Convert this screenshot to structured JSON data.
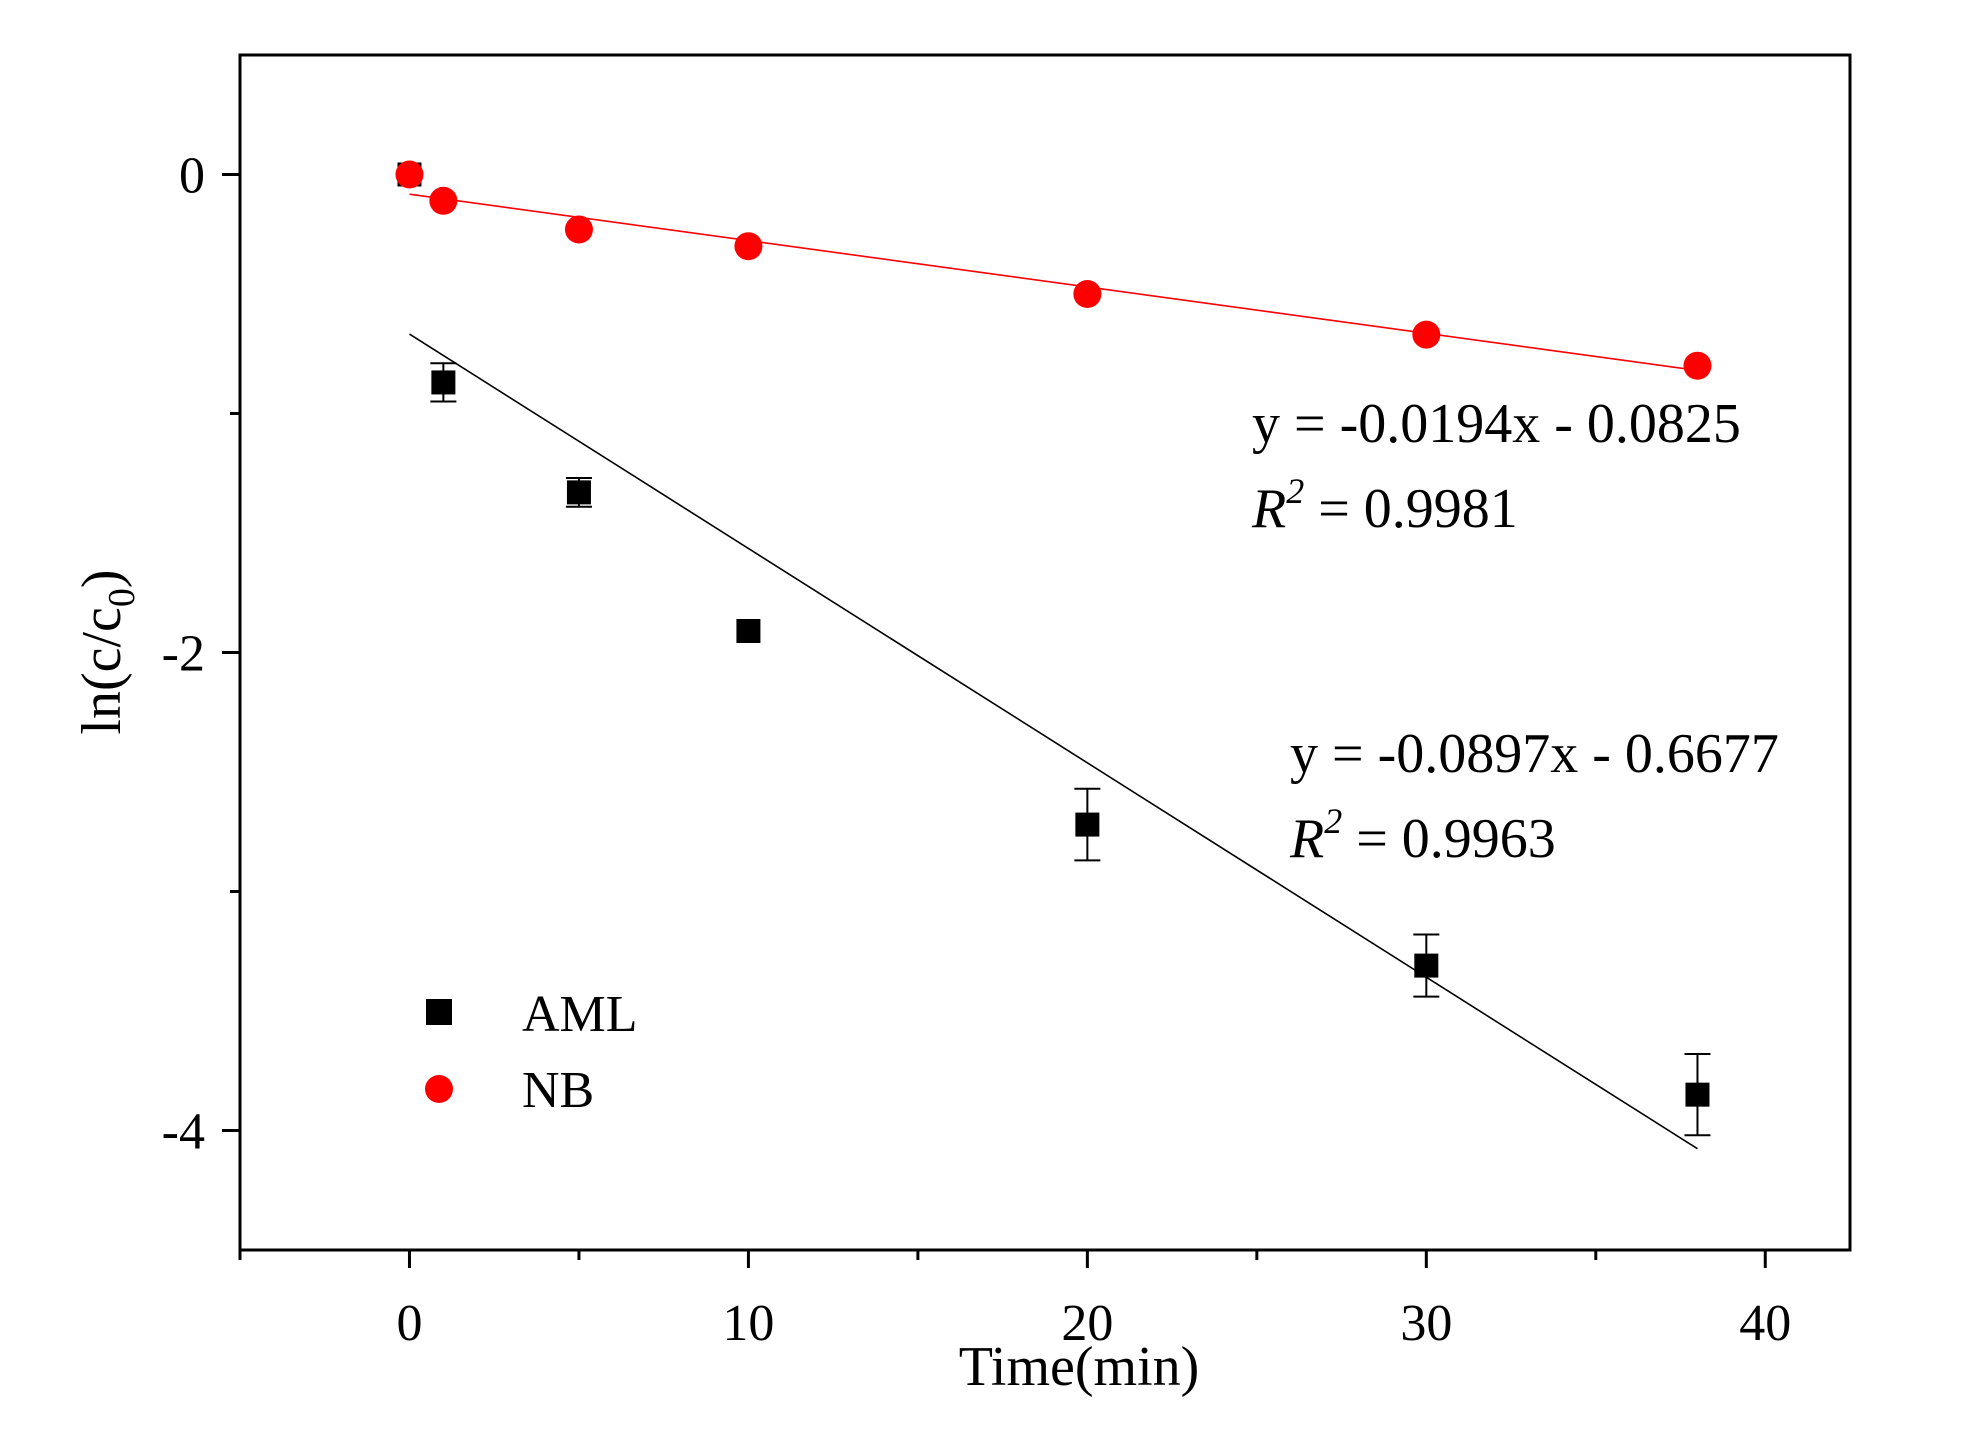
{
  "chart_data": {
    "type": "scatter",
    "xlabel": "Time(min)",
    "ylabel": {
      "main": "ln(c/c",
      "sub": "0",
      "close": ")"
    },
    "xlim": [
      -5,
      42.5
    ],
    "ylim": [
      -4.5,
      0.5
    ],
    "x_ticks": [
      0,
      10,
      20,
      30,
      40
    ],
    "x_minor_ticks": [
      -5,
      5,
      15,
      25,
      35
    ],
    "y_ticks": [
      0,
      -2,
      -4
    ],
    "y_minor_ticks": [
      -1,
      -3
    ],
    "grid": false,
    "legend_position": "bottom-left",
    "series": [
      {
        "name": "AML",
        "marker": "square",
        "color": "#000000",
        "x": [
          0,
          1,
          5,
          10,
          20,
          30,
          38
        ],
        "y": [
          0,
          -0.87,
          -1.33,
          -1.91,
          -2.72,
          -3.31,
          -3.85
        ],
        "error": [
          0,
          0.08,
          0.06,
          0,
          0.15,
          0.13,
          0.17
        ],
        "fit": {
          "slope": -0.0897,
          "intercept": -0.6677,
          "x_range": [
            0,
            38
          ]
        }
      },
      {
        "name": "NB",
        "marker": "circle",
        "color": "#ff0000",
        "x": [
          0,
          1,
          5,
          10,
          20,
          30,
          38
        ],
        "y": [
          0,
          -0.11,
          -0.23,
          -0.3,
          -0.5,
          -0.67,
          -0.8
        ],
        "error": [
          0,
          0,
          0,
          0,
          0,
          0,
          0
        ],
        "fit": {
          "slope": -0.0194,
          "intercept": -0.0825,
          "x_range": [
            0,
            38
          ]
        }
      }
    ],
    "annotations": [
      {
        "id": "nb",
        "eq": "y = -0.0194x - 0.0825",
        "r_sq_label": "R",
        "r_sq_exp": "2",
        "r_sq_value": " = 0.9981"
      },
      {
        "id": "aml",
        "eq": "y = -0.0897x - 0.6677",
        "r_sq_label": "R",
        "r_sq_exp": "2",
        "r_sq_value": " = 0.9963"
      }
    ]
  }
}
